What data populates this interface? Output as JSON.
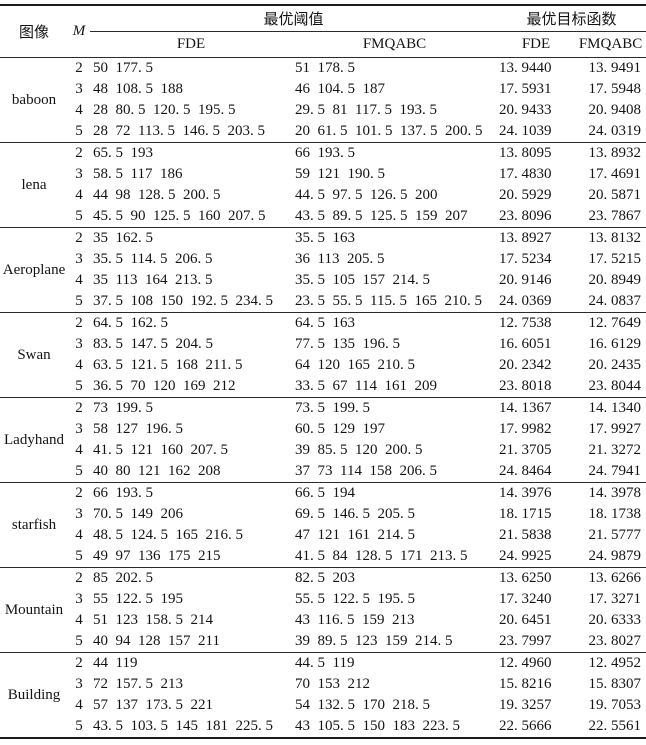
{
  "theme": {
    "background": "#ffffff",
    "text_color": "#141414",
    "rule_color": "#2b2b2b",
    "heavy_rule_color": "#1c1c1c"
  },
  "table": {
    "header": {
      "image": "图像",
      "m": "M",
      "group_threshold": "最优阈值",
      "group_objective": "最优目标函数",
      "sub": [
        "FDE",
        "FMQABC",
        "FDE",
        "FMQABC"
      ]
    },
    "groups": [
      {
        "image": "baboon",
        "rows": [
          {
            "m": "2",
            "t_fde": "50  177. 5",
            "t_fmqabc": "51  178. 5",
            "o_fde": "13. 9440",
            "o_fmqabc": "13. 9491"
          },
          {
            "m": "3",
            "t_fde": "48  108. 5  188",
            "t_fmqabc": "46  104. 5  187",
            "o_fde": "17. 5931",
            "o_fmqabc": "17. 5948"
          },
          {
            "m": "4",
            "t_fde": "28  80. 5  120. 5  195. 5",
            "t_fmqabc": "29. 5  81  117. 5  193. 5",
            "o_fde": "20. 9433",
            "o_fmqabc": "20. 9408"
          },
          {
            "m": "5",
            "t_fde": "28  72  113. 5  146. 5  203. 5",
            "t_fmqabc": "20  61. 5  101. 5  137. 5  200. 5",
            "o_fde": "24. 1039",
            "o_fmqabc": "24. 0319"
          }
        ]
      },
      {
        "image": "lena",
        "rows": [
          {
            "m": "2",
            "t_fde": "65. 5  193",
            "t_fmqabc": "66  193. 5",
            "o_fde": "13. 8095",
            "o_fmqabc": "13. 8932"
          },
          {
            "m": "3",
            "t_fde": "58. 5  117  186",
            "t_fmqabc": "59  121  190. 5",
            "o_fde": "17. 4830",
            "o_fmqabc": "17. 4691"
          },
          {
            "m": "4",
            "t_fde": "44  98  128. 5  200. 5",
            "t_fmqabc": "44. 5  97. 5  126. 5  200",
            "o_fde": "20. 5929",
            "o_fmqabc": "20. 5871"
          },
          {
            "m": "5",
            "t_fde": "45. 5  90  125. 5  160  207. 5",
            "t_fmqabc": "43. 5  89. 5  125. 5  159  207",
            "o_fde": "23. 8096",
            "o_fmqabc": "23. 7867"
          }
        ]
      },
      {
        "image": "Aeroplane",
        "rows": [
          {
            "m": "2",
            "t_fde": "35  162. 5",
            "t_fmqabc": "35. 5  163",
            "o_fde": "13. 8927",
            "o_fmqabc": "13. 8132"
          },
          {
            "m": "3",
            "t_fde": "35. 5  114. 5  206. 5",
            "t_fmqabc": "36  113  205. 5",
            "o_fde": "17. 5234",
            "o_fmqabc": "17. 5215"
          },
          {
            "m": "4",
            "t_fde": "35  113  164  213. 5",
            "t_fmqabc": "35. 5  105  157  214. 5",
            "o_fde": "20. 9146",
            "o_fmqabc": "20. 8949"
          },
          {
            "m": "5",
            "t_fde": "37. 5  108  150  192. 5  234. 5",
            "t_fmqabc": "23. 5  55. 5  115. 5  165  210. 5",
            "o_fde": "24. 0369",
            "o_fmqabc": "24. 0837"
          }
        ]
      },
      {
        "image": "Swan",
        "rows": [
          {
            "m": "2",
            "t_fde": "64. 5  162. 5",
            "t_fmqabc": "64. 5  163",
            "o_fde": "12. 7538",
            "o_fmqabc": "12. 7649"
          },
          {
            "m": "3",
            "t_fde": "83. 5  147. 5  204. 5",
            "t_fmqabc": "77. 5  135  196. 5",
            "o_fde": "16. 6051",
            "o_fmqabc": "16. 6129"
          },
          {
            "m": "4",
            "t_fde": "63. 5  121. 5  168  211. 5",
            "t_fmqabc": "64  120  165  210. 5",
            "o_fde": "20. 2342",
            "o_fmqabc": "20. 2435"
          },
          {
            "m": "5",
            "t_fde": "36. 5  70  120  169  212",
            "t_fmqabc": "33. 5  67  114  161  209",
            "o_fde": "23. 8018",
            "o_fmqabc": "23. 8044"
          }
        ]
      },
      {
        "image": "Ladyhand",
        "rows": [
          {
            "m": "2",
            "t_fde": "73  199. 5",
            "t_fmqabc": "73. 5  199. 5",
            "o_fde": "14. 1367",
            "o_fmqabc": "14. 1340"
          },
          {
            "m": "3",
            "t_fde": "58  127  196. 5",
            "t_fmqabc": "60. 5  129  197",
            "o_fde": "17. 9982",
            "o_fmqabc": "17. 9927"
          },
          {
            "m": "4",
            "t_fde": "41. 5  121  160  207. 5",
            "t_fmqabc": "39  85. 5  120  200. 5",
            "o_fde": "21. 3705",
            "o_fmqabc": "21. 3272"
          },
          {
            "m": "5",
            "t_fde": "40  80  121  162  208",
            "t_fmqabc": "37  73  114  158  206. 5",
            "o_fde": "24. 8464",
            "o_fmqabc": "24. 7941"
          }
        ]
      },
      {
        "image": "starfish",
        "rows": [
          {
            "m": "2",
            "t_fde": "66  193. 5",
            "t_fmqabc": "66. 5  194",
            "o_fde": "14. 3976",
            "o_fmqabc": "14. 3978"
          },
          {
            "m": "3",
            "t_fde": "70. 5  149  206",
            "t_fmqabc": "69. 5  146. 5  205. 5",
            "o_fde": "18. 1715",
            "o_fmqabc": "18. 1738"
          },
          {
            "m": "4",
            "t_fde": "48. 5  124. 5  165  216. 5",
            "t_fmqabc": "47  121  161  214. 5",
            "o_fde": "21. 5838",
            "o_fmqabc": "21. 5777"
          },
          {
            "m": "5",
            "t_fde": "49  97  136  175  215",
            "t_fmqabc": "41. 5  84  128. 5  171  213. 5",
            "o_fde": "24. 9925",
            "o_fmqabc": "24. 9879"
          }
        ]
      },
      {
        "image": "Mountain",
        "rows": [
          {
            "m": "2",
            "t_fde": "85  202. 5",
            "t_fmqabc": "82. 5  203",
            "o_fde": "13. 6250",
            "o_fmqabc": "13. 6266"
          },
          {
            "m": "3",
            "t_fde": "55  122. 5  195",
            "t_fmqabc": "55. 5  122. 5  195. 5",
            "o_fde": "17. 3240",
            "o_fmqabc": "17. 3271"
          },
          {
            "m": "4",
            "t_fde": "51  123  158. 5  214",
            "t_fmqabc": "43  116. 5  159  213",
            "o_fde": "20. 6451",
            "o_fmqabc": "20. 6333"
          },
          {
            "m": "5",
            "t_fde": "40  94  128  157  211",
            "t_fmqabc": "39  89. 5  123  159  214. 5",
            "o_fde": "23. 7997",
            "o_fmqabc": "23. 8027"
          }
        ]
      },
      {
        "image": "Building",
        "rows": [
          {
            "m": "2",
            "t_fde": "44  119",
            "t_fmqabc": "44. 5  119",
            "o_fde": "12. 4960",
            "o_fmqabc": "12. 4952"
          },
          {
            "m": "3",
            "t_fde": "72  157. 5  213",
            "t_fmqabc": "70  153  212",
            "o_fde": "15. 8216",
            "o_fmqabc": "15. 8307"
          },
          {
            "m": "4",
            "t_fde": "57  137  173. 5  221",
            "t_fmqabc": "54  132. 5  170  218. 5",
            "o_fde": "19. 3257",
            "o_fmqabc": "19. 7053"
          },
          {
            "m": "5",
            "t_fde": "43. 5  103. 5  145  181  225. 5",
            "t_fmqabc": "43  105. 5  150  183  223. 5",
            "o_fde": "22. 5666",
            "o_fmqabc": "22. 5561"
          }
        ]
      }
    ]
  }
}
